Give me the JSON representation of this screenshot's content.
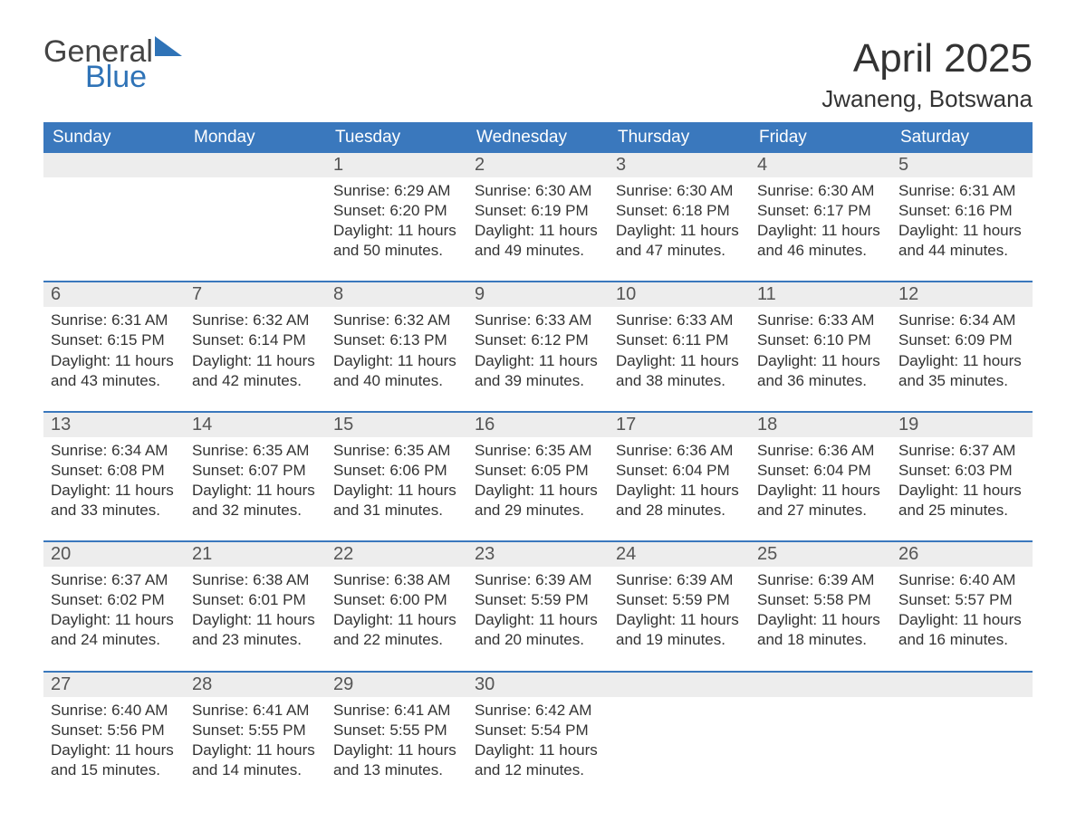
{
  "logo": {
    "word1": "General",
    "word2": "Blue",
    "tri_color": "#2f73b7"
  },
  "title": "April 2025",
  "location": "Jwaneng, Botswana",
  "weekdays": [
    "Sunday",
    "Monday",
    "Tuesday",
    "Wednesday",
    "Thursday",
    "Friday",
    "Saturday"
  ],
  "colors": {
    "header_bg": "#3a78bd",
    "header_text": "#ffffff",
    "daynum_bg": "#ededed",
    "week_border": "#3a78bd",
    "text": "#333333",
    "logo_gray": "#444444",
    "logo_blue": "#2f73b7"
  },
  "fonts": {
    "title_size": 44,
    "location_size": 26,
    "weekday_size": 19,
    "daynum_size": 20,
    "cell_size": 17
  },
  "weeks": [
    {
      "days": [
        null,
        null,
        {
          "n": "1",
          "sunrise": "Sunrise: 6:29 AM",
          "sunset": "Sunset: 6:20 PM",
          "dl1": "Daylight: 11 hours",
          "dl2": "and 50 minutes."
        },
        {
          "n": "2",
          "sunrise": "Sunrise: 6:30 AM",
          "sunset": "Sunset: 6:19 PM",
          "dl1": "Daylight: 11 hours",
          "dl2": "and 49 minutes."
        },
        {
          "n": "3",
          "sunrise": "Sunrise: 6:30 AM",
          "sunset": "Sunset: 6:18 PM",
          "dl1": "Daylight: 11 hours",
          "dl2": "and 47 minutes."
        },
        {
          "n": "4",
          "sunrise": "Sunrise: 6:30 AM",
          "sunset": "Sunset: 6:17 PM",
          "dl1": "Daylight: 11 hours",
          "dl2": "and 46 minutes."
        },
        {
          "n": "5",
          "sunrise": "Sunrise: 6:31 AM",
          "sunset": "Sunset: 6:16 PM",
          "dl1": "Daylight: 11 hours",
          "dl2": "and 44 minutes."
        }
      ]
    },
    {
      "days": [
        {
          "n": "6",
          "sunrise": "Sunrise: 6:31 AM",
          "sunset": "Sunset: 6:15 PM",
          "dl1": "Daylight: 11 hours",
          "dl2": "and 43 minutes."
        },
        {
          "n": "7",
          "sunrise": "Sunrise: 6:32 AM",
          "sunset": "Sunset: 6:14 PM",
          "dl1": "Daylight: 11 hours",
          "dl2": "and 42 minutes."
        },
        {
          "n": "8",
          "sunrise": "Sunrise: 6:32 AM",
          "sunset": "Sunset: 6:13 PM",
          "dl1": "Daylight: 11 hours",
          "dl2": "and 40 minutes."
        },
        {
          "n": "9",
          "sunrise": "Sunrise: 6:33 AM",
          "sunset": "Sunset: 6:12 PM",
          "dl1": "Daylight: 11 hours",
          "dl2": "and 39 minutes."
        },
        {
          "n": "10",
          "sunrise": "Sunrise: 6:33 AM",
          "sunset": "Sunset: 6:11 PM",
          "dl1": "Daylight: 11 hours",
          "dl2": "and 38 minutes."
        },
        {
          "n": "11",
          "sunrise": "Sunrise: 6:33 AM",
          "sunset": "Sunset: 6:10 PM",
          "dl1": "Daylight: 11 hours",
          "dl2": "and 36 minutes."
        },
        {
          "n": "12",
          "sunrise": "Sunrise: 6:34 AM",
          "sunset": "Sunset: 6:09 PM",
          "dl1": "Daylight: 11 hours",
          "dl2": "and 35 minutes."
        }
      ]
    },
    {
      "days": [
        {
          "n": "13",
          "sunrise": "Sunrise: 6:34 AM",
          "sunset": "Sunset: 6:08 PM",
          "dl1": "Daylight: 11 hours",
          "dl2": "and 33 minutes."
        },
        {
          "n": "14",
          "sunrise": "Sunrise: 6:35 AM",
          "sunset": "Sunset: 6:07 PM",
          "dl1": "Daylight: 11 hours",
          "dl2": "and 32 minutes."
        },
        {
          "n": "15",
          "sunrise": "Sunrise: 6:35 AM",
          "sunset": "Sunset: 6:06 PM",
          "dl1": "Daylight: 11 hours",
          "dl2": "and 31 minutes."
        },
        {
          "n": "16",
          "sunrise": "Sunrise: 6:35 AM",
          "sunset": "Sunset: 6:05 PM",
          "dl1": "Daylight: 11 hours",
          "dl2": "and 29 minutes."
        },
        {
          "n": "17",
          "sunrise": "Sunrise: 6:36 AM",
          "sunset": "Sunset: 6:04 PM",
          "dl1": "Daylight: 11 hours",
          "dl2": "and 28 minutes."
        },
        {
          "n": "18",
          "sunrise": "Sunrise: 6:36 AM",
          "sunset": "Sunset: 6:04 PM",
          "dl1": "Daylight: 11 hours",
          "dl2": "and 27 minutes."
        },
        {
          "n": "19",
          "sunrise": "Sunrise: 6:37 AM",
          "sunset": "Sunset: 6:03 PM",
          "dl1": "Daylight: 11 hours",
          "dl2": "and 25 minutes."
        }
      ]
    },
    {
      "days": [
        {
          "n": "20",
          "sunrise": "Sunrise: 6:37 AM",
          "sunset": "Sunset: 6:02 PM",
          "dl1": "Daylight: 11 hours",
          "dl2": "and 24 minutes."
        },
        {
          "n": "21",
          "sunrise": "Sunrise: 6:38 AM",
          "sunset": "Sunset: 6:01 PM",
          "dl1": "Daylight: 11 hours",
          "dl2": "and 23 minutes."
        },
        {
          "n": "22",
          "sunrise": "Sunrise: 6:38 AM",
          "sunset": "Sunset: 6:00 PM",
          "dl1": "Daylight: 11 hours",
          "dl2": "and 22 minutes."
        },
        {
          "n": "23",
          "sunrise": "Sunrise: 6:39 AM",
          "sunset": "Sunset: 5:59 PM",
          "dl1": "Daylight: 11 hours",
          "dl2": "and 20 minutes."
        },
        {
          "n": "24",
          "sunrise": "Sunrise: 6:39 AM",
          "sunset": "Sunset: 5:59 PM",
          "dl1": "Daylight: 11 hours",
          "dl2": "and 19 minutes."
        },
        {
          "n": "25",
          "sunrise": "Sunrise: 6:39 AM",
          "sunset": "Sunset: 5:58 PM",
          "dl1": "Daylight: 11 hours",
          "dl2": "and 18 minutes."
        },
        {
          "n": "26",
          "sunrise": "Sunrise: 6:40 AM",
          "sunset": "Sunset: 5:57 PM",
          "dl1": "Daylight: 11 hours",
          "dl2": "and 16 minutes."
        }
      ]
    },
    {
      "days": [
        {
          "n": "27",
          "sunrise": "Sunrise: 6:40 AM",
          "sunset": "Sunset: 5:56 PM",
          "dl1": "Daylight: 11 hours",
          "dl2": "and 15 minutes."
        },
        {
          "n": "28",
          "sunrise": "Sunrise: 6:41 AM",
          "sunset": "Sunset: 5:55 PM",
          "dl1": "Daylight: 11 hours",
          "dl2": "and 14 minutes."
        },
        {
          "n": "29",
          "sunrise": "Sunrise: 6:41 AM",
          "sunset": "Sunset: 5:55 PM",
          "dl1": "Daylight: 11 hours",
          "dl2": "and 13 minutes."
        },
        {
          "n": "30",
          "sunrise": "Sunrise: 6:42 AM",
          "sunset": "Sunset: 5:54 PM",
          "dl1": "Daylight: 11 hours",
          "dl2": "and 12 minutes."
        },
        null,
        null,
        null
      ]
    }
  ]
}
